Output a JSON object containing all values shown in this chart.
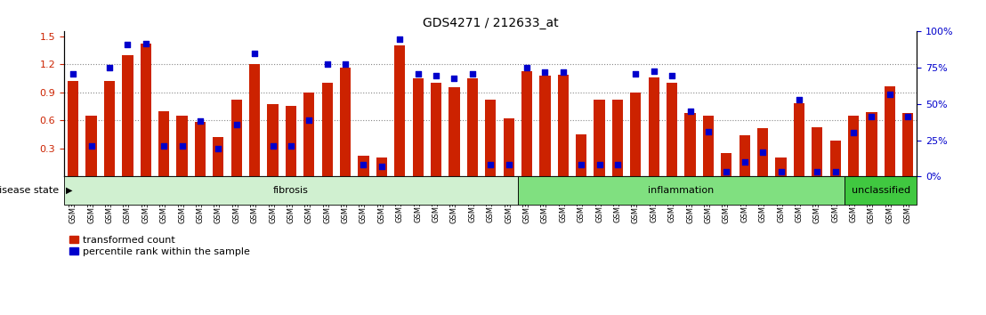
{
  "title": "GDS4271 / 212633_at",
  "samples": [
    "GSM380382",
    "GSM380383",
    "GSM380384",
    "GSM380385",
    "GSM380386",
    "GSM380387",
    "GSM380388",
    "GSM380389",
    "GSM380390",
    "GSM380391",
    "GSM380392",
    "GSM380393",
    "GSM380394",
    "GSM380395",
    "GSM380396",
    "GSM380397",
    "GSM380398",
    "GSM380399",
    "GSM380400",
    "GSM380401",
    "GSM380402",
    "GSM380403",
    "GSM380404",
    "GSM380405",
    "GSM380406",
    "GSM380407",
    "GSM380408",
    "GSM380409",
    "GSM380410",
    "GSM380411",
    "GSM380412",
    "GSM380413",
    "GSM380414",
    "GSM380415",
    "GSM380416",
    "GSM380417",
    "GSM380418",
    "GSM380419",
    "GSM380420",
    "GSM380421",
    "GSM380422",
    "GSM380423",
    "GSM380424",
    "GSM380425",
    "GSM380426",
    "GSM380427",
    "GSM380428"
  ],
  "bar_values": [
    1.02,
    0.65,
    1.02,
    1.3,
    1.42,
    0.7,
    0.65,
    0.58,
    0.42,
    0.82,
    1.2,
    0.77,
    0.75,
    0.9,
    1.0,
    1.16,
    0.22,
    0.2,
    1.4,
    1.05,
    1.0,
    0.95,
    1.05,
    0.82,
    0.62,
    1.13,
    1.08,
    1.09,
    0.45,
    0.82,
    0.82,
    0.9,
    1.06,
    1.0,
    0.68,
    0.65,
    0.25,
    0.44,
    0.52,
    0.2,
    0.78,
    0.53,
    0.38,
    0.65,
    0.69,
    0.96,
    0.68
  ],
  "percentile_values": [
    1.1,
    0.33,
    1.16,
    1.41,
    1.42,
    0.33,
    0.33,
    0.59,
    0.3,
    0.55,
    1.32,
    0.33,
    0.33,
    0.6,
    1.2,
    1.2,
    0.13,
    0.11,
    1.47,
    1.1,
    1.08,
    1.05,
    1.1,
    0.13,
    0.13,
    1.16,
    1.12,
    1.12,
    0.13,
    0.13,
    0.13,
    1.1,
    1.13,
    1.08,
    0.7,
    0.48,
    0.05,
    0.15,
    0.26,
    0.05,
    0.82,
    0.05,
    0.05,
    0.47,
    0.64,
    0.88,
    0.64
  ],
  "groups": [
    {
      "name": "fibrosis",
      "start": 0,
      "end": 25,
      "color": "#d0f0d0"
    },
    {
      "name": "inflammation",
      "start": 25,
      "end": 43,
      "color": "#80e080"
    },
    {
      "name": "unclassified",
      "start": 43,
      "end": 47,
      "color": "#40c840"
    }
  ],
  "ylim_left": [
    0.0,
    1.55
  ],
  "yticks_left": [
    0.3,
    0.6,
    0.9,
    1.2,
    1.5
  ],
  "grid_lines": [
    0.6,
    0.9,
    1.2
  ],
  "bar_color": "#cc2200",
  "dot_color": "#0000cc",
  "bar_width": 0.6,
  "grid_color": "#888888",
  "bg_color": "#ffffff",
  "ylabel_left_color": "#cc2200",
  "ylabel_right_color": "#0000cc",
  "right_yticks": [
    0,
    25,
    50,
    75,
    100
  ],
  "legend_items": [
    {
      "label": "transformed count",
      "color": "#cc2200"
    },
    {
      "label": "percentile rank within the sample",
      "color": "#0000cc"
    }
  ]
}
